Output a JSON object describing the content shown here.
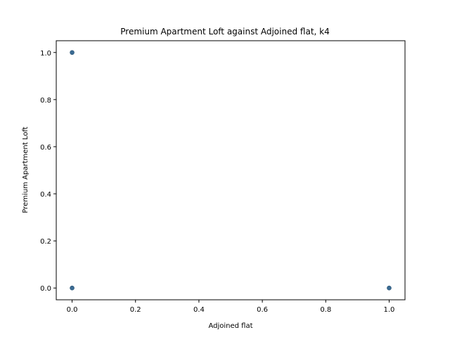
{
  "chart_data": {
    "type": "scatter",
    "title": "Premium Apartment Loft against Adjoined flat, k4",
    "xlabel": "Adjoined flat",
    "ylabel": "Premium Apartment Loft",
    "xlim": [
      -0.05,
      1.05
    ],
    "ylim": [
      -0.05,
      1.05
    ],
    "xticks": [
      0.0,
      0.2,
      0.4,
      0.6,
      0.8,
      1.0
    ],
    "xtick_labels": [
      "0.0",
      "0.2",
      "0.4",
      "0.6",
      "0.8",
      "1.0"
    ],
    "yticks": [
      0.0,
      0.2,
      0.4,
      0.6,
      0.8,
      1.0
    ],
    "ytick_labels": [
      "0.0",
      "0.2",
      "0.4",
      "0.6",
      "0.8",
      "1.0"
    ],
    "grid": false,
    "marker_color": "#3a6b93",
    "points": [
      {
        "x": 0.0,
        "y": 1.0
      },
      {
        "x": 0.0,
        "y": 0.0
      },
      {
        "x": 1.0,
        "y": 0.0
      }
    ]
  }
}
